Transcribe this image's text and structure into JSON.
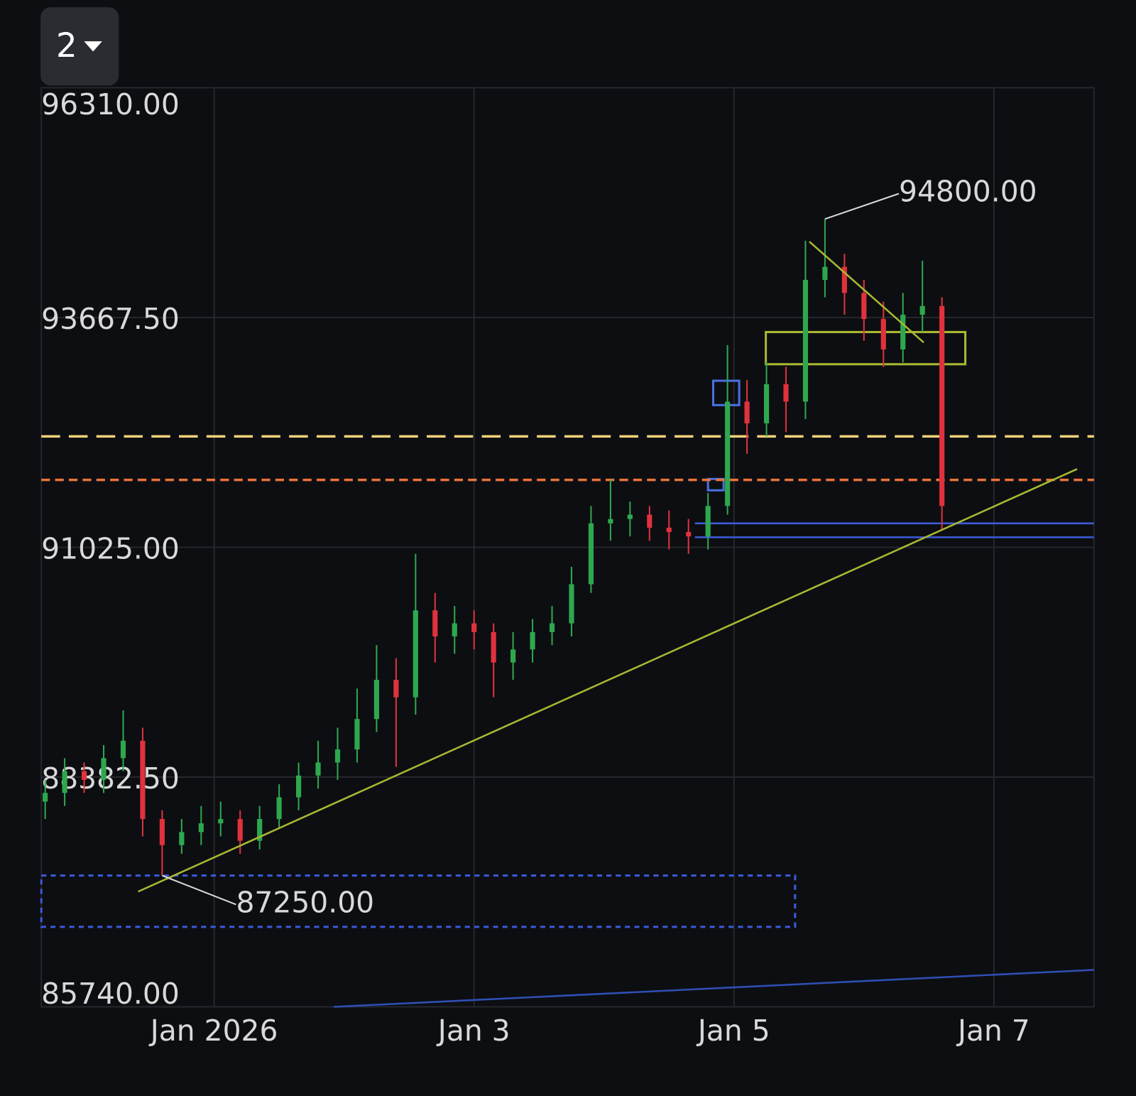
{
  "toolbar": {
    "interval": "2"
  },
  "chart_data": {
    "type": "candlestick",
    "xlim": [
      -1.33,
      6.77
    ],
    "xticks": [
      {
        "value": 0,
        "label": "Jan 2026"
      },
      {
        "value": 2,
        "label": "Jan 3"
      },
      {
        "value": 4,
        "label": "Jan 5"
      },
      {
        "value": 6,
        "label": "Jan 7"
      }
    ],
    "ylim": [
      85740,
      96310
    ],
    "yticks": [
      {
        "value": 96310,
        "label": "96310.00"
      },
      {
        "value": 93667.5,
        "label": "93667.50"
      },
      {
        "value": 91025,
        "label": "91025.00"
      },
      {
        "value": 88382.5,
        "label": "88382.50"
      },
      {
        "value": 85740,
        "label": "85740.00"
      }
    ],
    "grid": true,
    "up_color": "#2ea84f",
    "down_color": "#e0323c",
    "x": [
      -1.3,
      -1.15,
      -1.0,
      -0.85,
      -0.7,
      -0.55,
      -0.4,
      -0.25,
      -0.1,
      0.05,
      0.2,
      0.35,
      0.5,
      0.65,
      0.8,
      0.95,
      1.1,
      1.25,
      1.4,
      1.55,
      1.7,
      1.85,
      2.0,
      2.15,
      2.3,
      2.45,
      2.6,
      2.75,
      2.9,
      3.05,
      3.2,
      3.35,
      3.5,
      3.65,
      3.8,
      3.95,
      4.1,
      4.25,
      4.4,
      4.55,
      4.7,
      4.85,
      5.0,
      5.15,
      5.3,
      5.45,
      5.6
    ],
    "open": [
      88100,
      88200,
      88450,
      88350,
      88600,
      88800,
      87900,
      87600,
      87750,
      87850,
      87900,
      87650,
      87900,
      88150,
      88400,
      88550,
      88700,
      89050,
      89500,
      89300,
      90300,
      90000,
      90150,
      90050,
      89700,
      89850,
      90050,
      90150,
      90600,
      91300,
      91350,
      91400,
      91250,
      91200,
      91150,
      91500,
      92700,
      92450,
      92900,
      92700,
      94100,
      94250,
      93950,
      93650,
      93300,
      93700,
      93800
    ],
    "high": [
      88350,
      88600,
      88550,
      88750,
      89150,
      88950,
      88000,
      87900,
      88050,
      88100,
      88000,
      88050,
      88300,
      88550,
      88800,
      88950,
      89400,
      89900,
      89750,
      90950,
      90500,
      90350,
      90300,
      90150,
      90050,
      90200,
      90350,
      90800,
      91500,
      91800,
      91550,
      91500,
      91450,
      91350,
      91650,
      93350,
      92950,
      93150,
      93100,
      94550,
      94800,
      94400,
      94100,
      93850,
      93950,
      94320,
      93900
    ],
    "low": [
      87900,
      88050,
      88200,
      88200,
      88450,
      87700,
      87250,
      87500,
      87600,
      87700,
      87500,
      87550,
      87800,
      88000,
      88250,
      88350,
      88550,
      88900,
      88500,
      89100,
      89700,
      89800,
      89850,
      89300,
      89500,
      89700,
      89900,
      90000,
      90500,
      91100,
      91150,
      91100,
      91000,
      90950,
      91000,
      91400,
      92100,
      92300,
      92350,
      92500,
      93900,
      93700,
      93400,
      93100,
      93150,
      93500,
      91230
    ],
    "close": [
      88200,
      88450,
      88350,
      88600,
      88800,
      87900,
      87600,
      87750,
      87850,
      87900,
      87650,
      87900,
      88150,
      88400,
      88550,
      88700,
      89050,
      89500,
      89300,
      90300,
      90000,
      90150,
      90050,
      89700,
      89850,
      90050,
      90150,
      90600,
      91300,
      91350,
      91400,
      91250,
      91200,
      91150,
      91500,
      92700,
      92450,
      92900,
      92700,
      94100,
      94250,
      93950,
      93650,
      93300,
      93700,
      93800,
      91500
    ],
    "levels": [
      {
        "value": 92300,
        "color": "#f3d27a",
        "style": "long-dash"
      },
      {
        "value": 91800,
        "color": "#e8743b",
        "style": "dashed"
      }
    ],
    "rays": [
      {
        "x": 3.7,
        "value": 91300,
        "color": "#3b5bdb"
      },
      {
        "x": 3.7,
        "value": 91140,
        "color": "#3b5bdb"
      }
    ],
    "boxes": [
      {
        "x": [
          -1.33,
          4.47
        ],
        "y": [
          86660,
          87250
        ],
        "color": "#3b5bdb",
        "style": "dotted"
      },
      {
        "x": [
          4.245,
          5.78
        ],
        "y": [
          93130,
          93500
        ],
        "color": "#a9b832",
        "style": "solid"
      },
      {
        "x": [
          3.84,
          4.04
        ],
        "y": [
          92660,
          92940
        ],
        "color": "#4a6fe0",
        "style": "solid"
      },
      {
        "x": [
          3.8,
          3.92
        ],
        "y": [
          91680,
          91810
        ],
        "color": "#4a6fe0",
        "style": "solid"
      }
    ],
    "trendlines": [
      {
        "x": [
          -0.585,
          6.64
        ],
        "y": [
          87065,
          91925
        ],
        "color": "#a9b832"
      },
      {
        "x": [
          4.58,
          5.46
        ],
        "y": [
          94540,
          93380
        ],
        "color": "#a9b832"
      },
      {
        "x": [
          0.92,
          6.77
        ],
        "y": [
          85740,
          86165
        ],
        "color": "#2f4fb5"
      }
    ],
    "annotations": [
      {
        "value": 94800,
        "label": "94800.00",
        "at": "high"
      },
      {
        "value": 87250,
        "label": "87250.00",
        "at": "low"
      }
    ]
  }
}
